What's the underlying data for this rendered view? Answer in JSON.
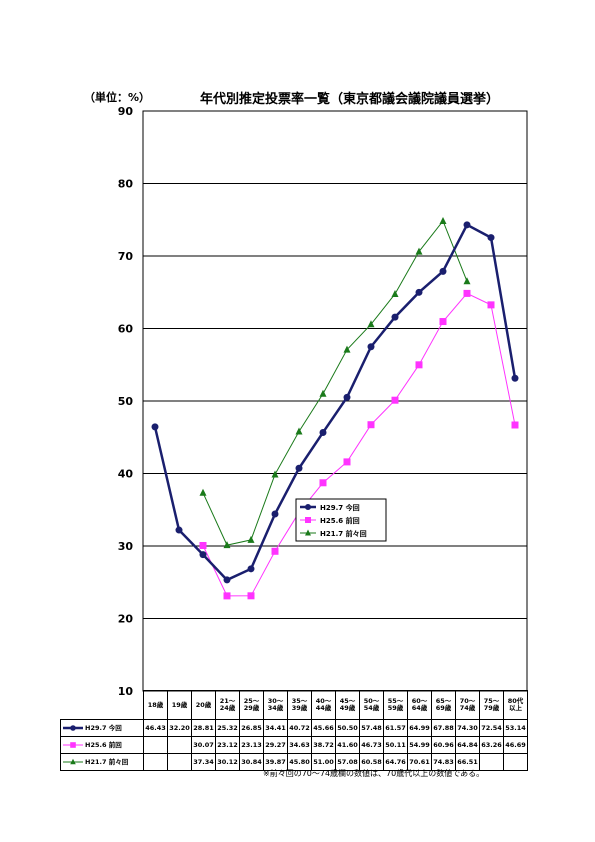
{
  "unit_label": "（単位：%）",
  "title": "年代別推定投票率一覧（東京都議会議院議員選挙）",
  "note": "※前々回の70～74歳欄の数値は、70歳代以上の数値である。",
  "colors": {
    "h29": "#1a1f6e",
    "h25": "#ff33ff",
    "h21": "#1a7a1a"
  },
  "chart_data": {
    "type": "line",
    "title": "年代別推定投票率一覧（東京都議会議院議員選挙）",
    "ylabel": "（単位：%）",
    "ylim": [
      10,
      90
    ],
    "yticks": [
      10,
      20,
      30,
      40,
      50,
      60,
      70,
      80,
      90
    ],
    "grid": true,
    "legend": "center",
    "categories": [
      [
        "18歳"
      ],
      [
        "19歳"
      ],
      [
        "20歳"
      ],
      [
        "21～",
        "24歳"
      ],
      [
        "25～",
        "29歳"
      ],
      [
        "30～",
        "34歳"
      ],
      [
        "35～",
        "39歳"
      ],
      [
        "40～",
        "44歳"
      ],
      [
        "45～",
        "49歳"
      ],
      [
        "50～",
        "54歳"
      ],
      [
        "55～",
        "59歳"
      ],
      [
        "60～",
        "64歳"
      ],
      [
        "65～",
        "69歳"
      ],
      [
        "70～",
        "74歳"
      ],
      [
        "75～",
        "79歳"
      ],
      [
        "80代",
        "以上"
      ]
    ],
    "series": [
      {
        "name": "H29.7 今回",
        "marker": "circle",
        "values": [
          46.43,
          32.2,
          28.81,
          25.32,
          26.85,
          34.41,
          40.72,
          45.66,
          50.5,
          57.48,
          61.57,
          64.99,
          67.88,
          74.3,
          72.54,
          53.14
        ]
      },
      {
        "name": "H25.6 前回",
        "marker": "square",
        "values": [
          null,
          null,
          30.07,
          23.12,
          23.13,
          29.27,
          34.63,
          38.72,
          41.6,
          46.73,
          50.11,
          54.99,
          60.96,
          64.84,
          63.26,
          46.69
        ]
      },
      {
        "name": "H21.7 前々回",
        "marker": "triangle",
        "values": [
          null,
          null,
          37.34,
          30.12,
          30.84,
          39.87,
          45.8,
          51.0,
          57.08,
          60.58,
          64.76,
          70.61,
          74.83,
          66.51,
          null,
          null
        ]
      }
    ]
  }
}
